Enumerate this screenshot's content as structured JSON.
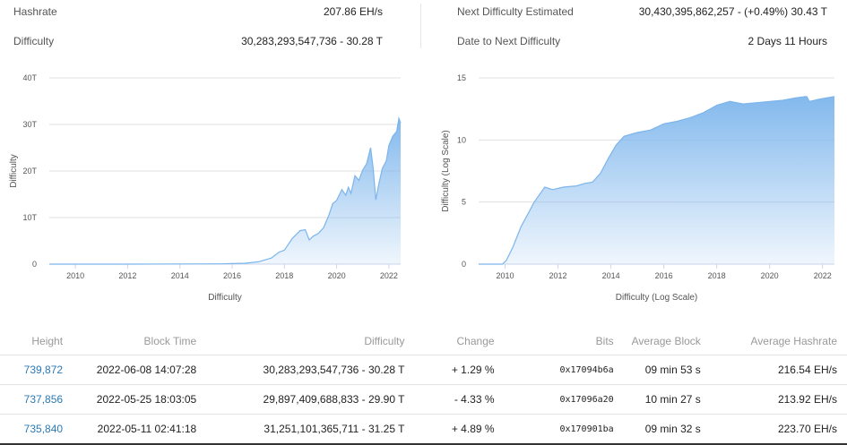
{
  "stats": {
    "hashrate_label": "Hashrate",
    "hashrate_value": "207.86 EH/s",
    "difficulty_label": "Difficulty",
    "difficulty_value": "30,283,293,547,736 - 30.28 T",
    "next_label": "Next Difficulty Estimated",
    "next_value": "30,430,395,862,257 - (+0.49%) 30.43 T",
    "date_label": "Date to Next Difficulty",
    "date_value": "2 Days 11 Hours"
  },
  "chart_data": [
    {
      "type": "area",
      "xlabel": "Difficulty",
      "ylabel": "Difficulty",
      "x_ticks": [
        "2010",
        "2012",
        "2014",
        "2016",
        "2018",
        "2020",
        "2022"
      ],
      "y_ticks": [
        "0",
        "10T",
        "20T",
        "30T",
        "40T"
      ],
      "xlim": [
        2009.0,
        2022.45
      ],
      "ylim": [
        0,
        40
      ],
      "grid": true,
      "color": "#7cb5ec",
      "x": [
        2009.0,
        2012.0,
        2014.0,
        2015.5,
        2016.5,
        2017.0,
        2017.5,
        2017.8,
        2018.0,
        2018.3,
        2018.6,
        2018.8,
        2018.95,
        2019.1,
        2019.3,
        2019.5,
        2019.7,
        2019.85,
        2020.0,
        2020.2,
        2020.35,
        2020.45,
        2020.55,
        2020.7,
        2020.85,
        2021.0,
        2021.15,
        2021.3,
        2021.4,
        2021.5,
        2021.6,
        2021.75,
        2021.9,
        2022.0,
        2022.15,
        2022.3,
        2022.38,
        2022.45
      ],
      "values": [
        0,
        0.001,
        0.04,
        0.06,
        0.2,
        0.5,
        1.3,
        2.6,
        3.0,
        5.5,
        7.2,
        7.4,
        5.2,
        6.0,
        6.6,
        7.8,
        10.5,
        13.0,
        13.7,
        16.0,
        14.8,
        16.5,
        15.2,
        19.0,
        18.0,
        20.2,
        21.6,
        25.0,
        20.5,
        13.8,
        16.8,
        20.6,
        22.2,
        25.5,
        27.5,
        28.5,
        31.3,
        30.3
      ]
    },
    {
      "type": "area",
      "xlabel": "Difficulty (Log Scale)",
      "ylabel": "Difficulty (Log Scale)",
      "x_ticks": [
        "2010",
        "2012",
        "2014",
        "2016",
        "2018",
        "2020",
        "2022"
      ],
      "y_ticks": [
        "0",
        "5",
        "10",
        "15"
      ],
      "xlim": [
        2009.0,
        2022.45
      ],
      "ylim": [
        0,
        15
      ],
      "grid": true,
      "color": "#7cb5ec",
      "x": [
        2009.0,
        2009.9,
        2010.05,
        2010.3,
        2010.6,
        2010.9,
        2011.1,
        2011.3,
        2011.5,
        2011.8,
        2012.2,
        2012.7,
        2013.0,
        2013.3,
        2013.6,
        2013.9,
        2014.2,
        2014.5,
        2015.0,
        2015.5,
        2016.0,
        2016.5,
        2017.0,
        2017.5,
        2018.0,
        2018.5,
        2019.0,
        2019.5,
        2020.0,
        2020.5,
        2021.0,
        2021.4,
        2021.5,
        2021.9,
        2022.45
      ],
      "values": [
        0,
        0,
        0.3,
        1.4,
        3.0,
        4.2,
        5.0,
        5.6,
        6.2,
        6.0,
        6.2,
        6.3,
        6.5,
        6.6,
        7.3,
        8.5,
        9.6,
        10.3,
        10.6,
        10.8,
        11.3,
        11.5,
        11.8,
        12.2,
        12.8,
        13.1,
        12.9,
        13.0,
        13.1,
        13.2,
        13.4,
        13.5,
        13.1,
        13.3,
        13.5
      ]
    }
  ],
  "table": {
    "headers": [
      "Height",
      "Block Time",
      "Difficulty",
      "Change",
      "Bits",
      "Average Block",
      "Average Hashrate"
    ],
    "rows": [
      {
        "height": "739,872",
        "time": "2022-06-08 14:07:28",
        "difficulty": "30,283,293,547,736 - 30.28 T",
        "change": "+ 1.29 %",
        "change_dir": "pos",
        "bits": "0x17094b6a",
        "avg_block": "09 min 53 s",
        "avg_hashrate": "216.54 EH/s"
      },
      {
        "height": "737,856",
        "time": "2022-05-25 18:03:05",
        "difficulty": "29,897,409,688,833 - 29.90 T",
        "change": "- 4.33 %",
        "change_dir": "neg",
        "bits": "0x17096a20",
        "avg_block": "10 min 27 s",
        "avg_hashrate": "213.92 EH/s"
      },
      {
        "height": "735,840",
        "time": "2022-05-11 02:41:18",
        "difficulty": "31,251,101,365,711 - 31.25 T",
        "change": "+ 4.89 %",
        "change_dir": "pos",
        "bits": "0x170901ba",
        "avg_block": "09 min 32 s",
        "avg_hashrate": "223.70 EH/s"
      }
    ]
  }
}
